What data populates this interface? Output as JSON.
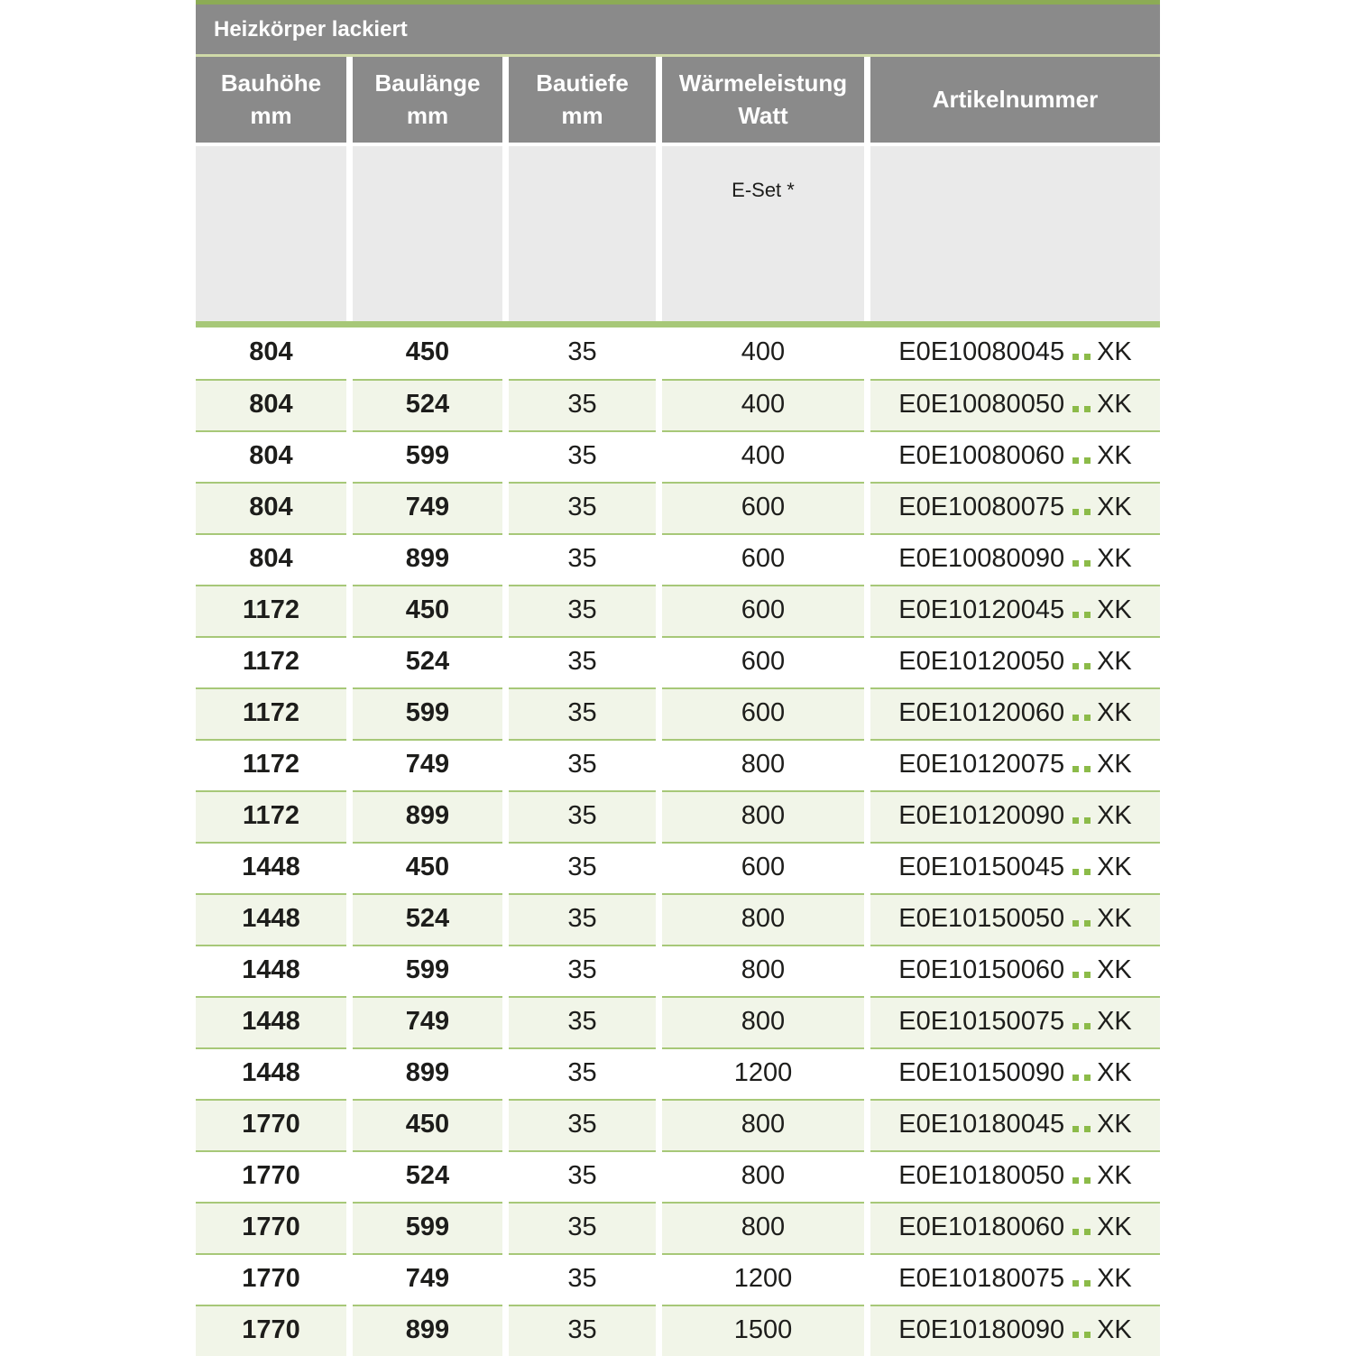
{
  "title": "Heizkörper lackiert",
  "columns": [
    {
      "label_line1": "Bauhöhe",
      "label_line2": "mm"
    },
    {
      "label_line1": "Baulänge",
      "label_line2": "mm"
    },
    {
      "label_line1": "Bautiefe",
      "label_line2": "mm"
    },
    {
      "label_line1": "Wärmeleistung",
      "label_line2": "Watt"
    },
    {
      "label_line1": "Artikelnummer",
      "label_line2": ""
    }
  ],
  "subheader": {
    "eset_label": "E-Set *"
  },
  "rows": [
    {
      "bauhoehe_mm": "804",
      "baulaenge_mm": "450",
      "bautiefe_mm": "35",
      "waermeleistung_watt": "400",
      "artikelnummer_prefix": "E0E10080045",
      "artikelnummer_suffix": "XK"
    },
    {
      "bauhoehe_mm": "804",
      "baulaenge_mm": "524",
      "bautiefe_mm": "35",
      "waermeleistung_watt": "400",
      "artikelnummer_prefix": "E0E10080050",
      "artikelnummer_suffix": "XK"
    },
    {
      "bauhoehe_mm": "804",
      "baulaenge_mm": "599",
      "bautiefe_mm": "35",
      "waermeleistung_watt": "400",
      "artikelnummer_prefix": "E0E10080060",
      "artikelnummer_suffix": "XK"
    },
    {
      "bauhoehe_mm": "804",
      "baulaenge_mm": "749",
      "bautiefe_mm": "35",
      "waermeleistung_watt": "600",
      "artikelnummer_prefix": "E0E10080075",
      "artikelnummer_suffix": "XK"
    },
    {
      "bauhoehe_mm": "804",
      "baulaenge_mm": "899",
      "bautiefe_mm": "35",
      "waermeleistung_watt": "600",
      "artikelnummer_prefix": "E0E10080090",
      "artikelnummer_suffix": "XK"
    },
    {
      "bauhoehe_mm": "1172",
      "baulaenge_mm": "450",
      "bautiefe_mm": "35",
      "waermeleistung_watt": "600",
      "artikelnummer_prefix": "E0E10120045",
      "artikelnummer_suffix": "XK"
    },
    {
      "bauhoehe_mm": "1172",
      "baulaenge_mm": "524",
      "bautiefe_mm": "35",
      "waermeleistung_watt": "600",
      "artikelnummer_prefix": "E0E10120050",
      "artikelnummer_suffix": "XK"
    },
    {
      "bauhoehe_mm": "1172",
      "baulaenge_mm": "599",
      "bautiefe_mm": "35",
      "waermeleistung_watt": "600",
      "artikelnummer_prefix": "E0E10120060",
      "artikelnummer_suffix": "XK"
    },
    {
      "bauhoehe_mm": "1172",
      "baulaenge_mm": "749",
      "bautiefe_mm": "35",
      "waermeleistung_watt": "800",
      "artikelnummer_prefix": "E0E10120075",
      "artikelnummer_suffix": "XK"
    },
    {
      "bauhoehe_mm": "1172",
      "baulaenge_mm": "899",
      "bautiefe_mm": "35",
      "waermeleistung_watt": "800",
      "artikelnummer_prefix": "E0E10120090",
      "artikelnummer_suffix": "XK"
    },
    {
      "bauhoehe_mm": "1448",
      "baulaenge_mm": "450",
      "bautiefe_mm": "35",
      "waermeleistung_watt": "600",
      "artikelnummer_prefix": "E0E10150045",
      "artikelnummer_suffix": "XK"
    },
    {
      "bauhoehe_mm": "1448",
      "baulaenge_mm": "524",
      "bautiefe_mm": "35",
      "waermeleistung_watt": "800",
      "artikelnummer_prefix": "E0E10150050",
      "artikelnummer_suffix": "XK"
    },
    {
      "bauhoehe_mm": "1448",
      "baulaenge_mm": "599",
      "bautiefe_mm": "35",
      "waermeleistung_watt": "800",
      "artikelnummer_prefix": "E0E10150060",
      "artikelnummer_suffix": "XK"
    },
    {
      "bauhoehe_mm": "1448",
      "baulaenge_mm": "749",
      "bautiefe_mm": "35",
      "waermeleistung_watt": "800",
      "artikelnummer_prefix": "E0E10150075",
      "artikelnummer_suffix": "XK"
    },
    {
      "bauhoehe_mm": "1448",
      "baulaenge_mm": "899",
      "bautiefe_mm": "35",
      "waermeleistung_watt": "1200",
      "artikelnummer_prefix": "E0E10150090",
      "artikelnummer_suffix": "XK"
    },
    {
      "bauhoehe_mm": "1770",
      "baulaenge_mm": "450",
      "bautiefe_mm": "35",
      "waermeleistung_watt": "800",
      "artikelnummer_prefix": "E0E10180045",
      "artikelnummer_suffix": "XK"
    },
    {
      "bauhoehe_mm": "1770",
      "baulaenge_mm": "524",
      "bautiefe_mm": "35",
      "waermeleistung_watt": "800",
      "artikelnummer_prefix": "E0E10180050",
      "artikelnummer_suffix": "XK"
    },
    {
      "bauhoehe_mm": "1770",
      "baulaenge_mm": "599",
      "bautiefe_mm": "35",
      "waermeleistung_watt": "800",
      "artikelnummer_prefix": "E0E10180060",
      "artikelnummer_suffix": "XK"
    },
    {
      "bauhoehe_mm": "1770",
      "baulaenge_mm": "749",
      "bautiefe_mm": "35",
      "waermeleistung_watt": "1200",
      "artikelnummer_prefix": "E0E10180075",
      "artikelnummer_suffix": "XK"
    },
    {
      "bauhoehe_mm": "1770",
      "baulaenge_mm": "899",
      "bautiefe_mm": "35",
      "waermeleistung_watt": "1500",
      "artikelnummer_prefix": "E0E10180090",
      "artikelnummer_suffix": "XK"
    }
  ],
  "colors": {
    "header_gray": "#8a8a8a",
    "subheader_gray": "#eaeaea",
    "row_shade_green": "#f1f5e8",
    "separator_green": "#a7c878",
    "top_line_green": "#8cab55",
    "title_underline_green": "#cfdaa8",
    "dots_green": "#8cbb49",
    "text": "#1d1d1b"
  }
}
